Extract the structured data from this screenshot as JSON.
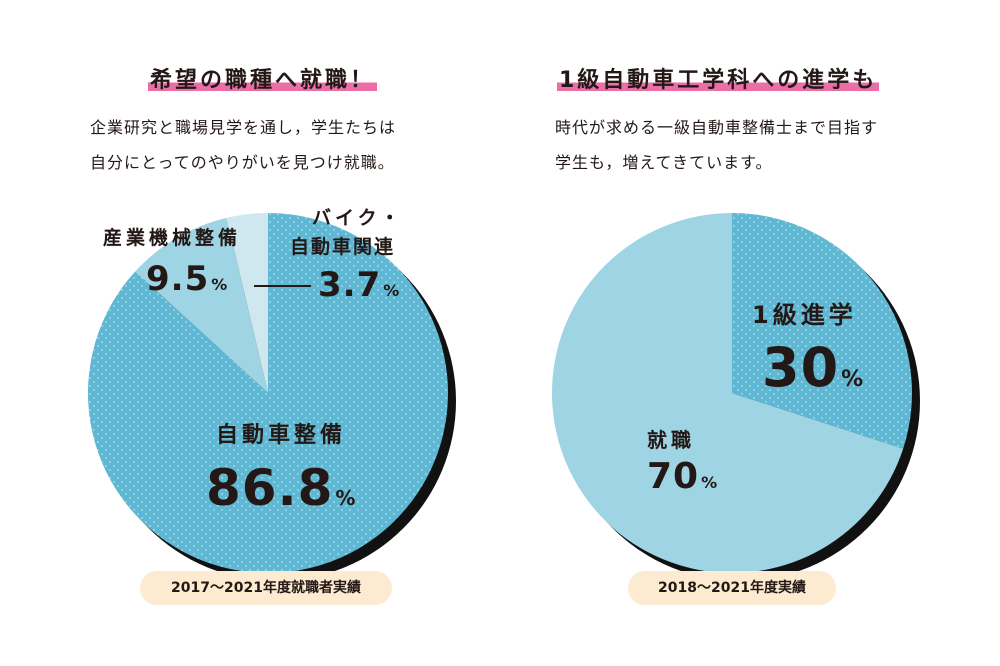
{
  "colors": {
    "dark_blue": "#5eb7d3",
    "mid_blue": "#9fd4e4",
    "light_blue": "#cfe8f0",
    "pink": "#ec6ea6",
    "pill_bg": "#fcebd0",
    "shadow": "#111111"
  },
  "left": {
    "heading": "希望の職種へ就職！",
    "desc_lines": [
      "企業研究と職場見学を通し，学生たちは",
      "自分にとってのやりがいを見つけ就職。"
    ],
    "footnote": "2017〜2021年度就職者実績",
    "labels": {
      "auto_cat": "自動車整備",
      "auto_val": "86.8",
      "machine_cat": "産業機械整備",
      "machine_val": "9.5",
      "bike_cat_line1": "バイク・",
      "bike_cat_line2": "自動車関連",
      "bike_val": "3.7",
      "unit": "%"
    }
  },
  "right": {
    "heading": "1級自動車工学科への進学も",
    "desc_lines": [
      "時代が求める一級自動車整備士まで目指す",
      "学生も，増えてきています。"
    ],
    "footnote": "2018〜2021年度実績",
    "labels": {
      "adv_cat": "1級進学",
      "adv_val": "30",
      "job_cat": "就職",
      "job_val": "70",
      "unit": "%"
    }
  },
  "chart_data": [
    {
      "type": "pie",
      "title": "希望の職種へ就職！",
      "categories": [
        "自動車整備",
        "産業機械整備",
        "バイク・自動車関連"
      ],
      "values": [
        86.8,
        9.5,
        3.7
      ],
      "unit": "%",
      "colors": [
        "#5eb7d3",
        "#9fd4e4",
        "#cfe8f0"
      ],
      "period": "2017〜2021年度就職者実績"
    },
    {
      "type": "pie",
      "title": "1級自動車工学科への進学も",
      "categories": [
        "1級進学",
        "就職"
      ],
      "values": [
        30,
        70
      ],
      "unit": "%",
      "colors": [
        "#5eb7d3",
        "#9fd4e4"
      ],
      "period": "2018〜2021年度実績"
    }
  ]
}
